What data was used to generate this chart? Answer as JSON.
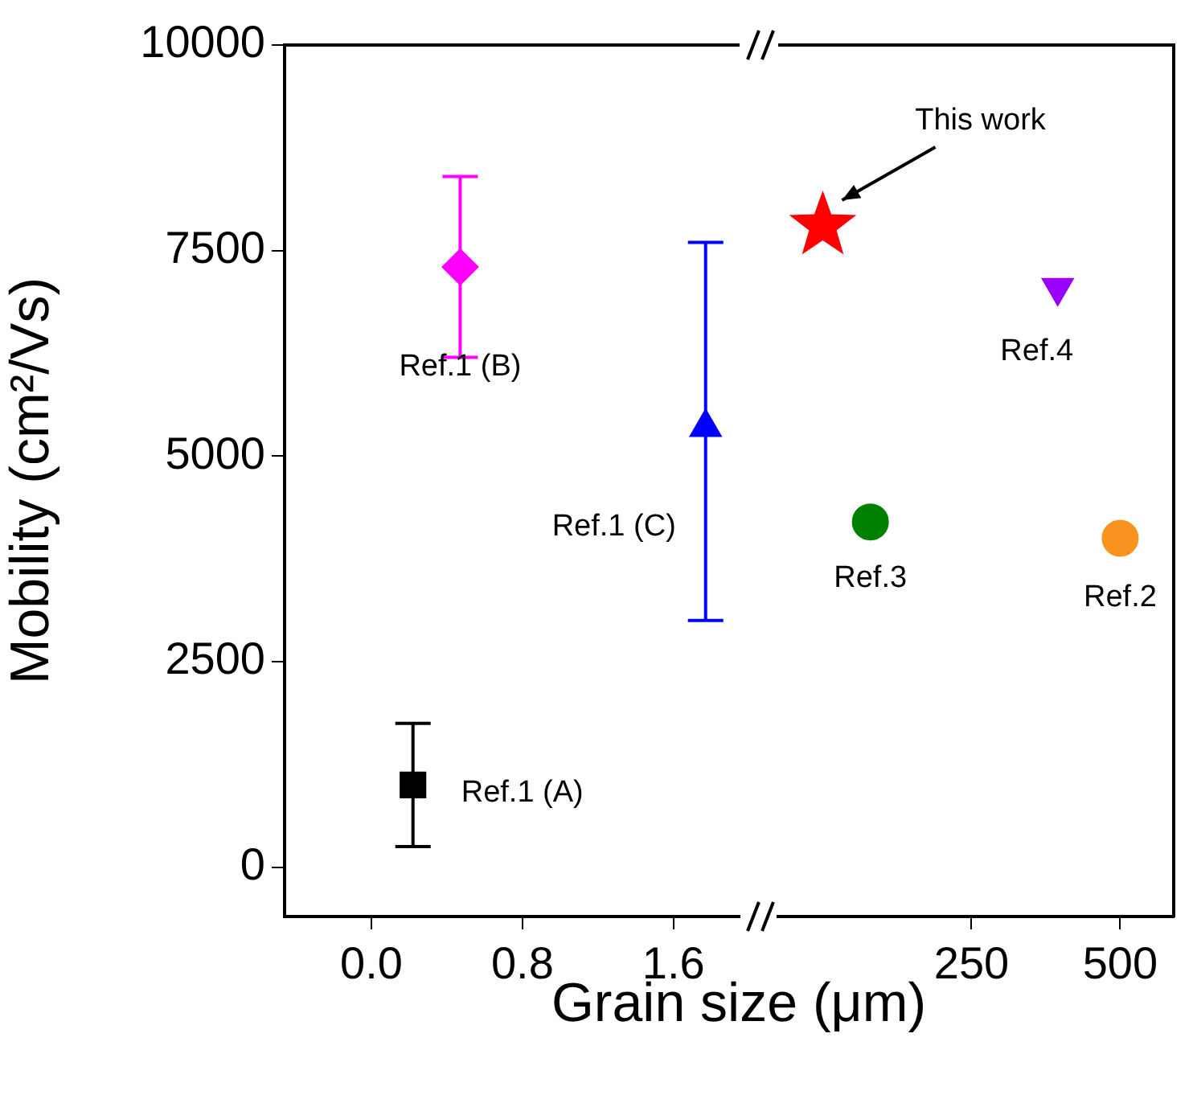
{
  "chart_data": [
    {
      "type": "scatter",
      "ylabel": "Mobility (cm²/Vs)",
      "xlabel": "Grain size (μm)",
      "xlim": [
        -0.46,
        1.95
      ],
      "xticks": [
        {
          "value": 0,
          "label": "0.0"
        },
        {
          "value": 0.8,
          "label": "0.8"
        },
        {
          "value": 1.6,
          "label": "1.6"
        }
      ],
      "ylim": [
        -600,
        10000
      ],
      "yticks": [
        0,
        2500,
        5000,
        7500,
        10000
      ],
      "grid": false,
      "legend": false,
      "series": [
        {
          "name": "Ref.1 (A)",
          "color": "#000000",
          "marker": "square",
          "x": [
            0.22
          ],
          "values": [
            1000
          ],
          "errors": [
            [
              250,
              1750
            ]
          ]
        },
        {
          "name": "Ref.1 (B)",
          "color": "#ff00ff",
          "marker": "diamond",
          "x": [
            0.47
          ],
          "values": [
            7300
          ],
          "errors": [
            [
              6200,
              8400
            ]
          ]
        },
        {
          "name": "Ref.1 (C)",
          "color": "#0000ff",
          "marker": "triangle",
          "x": [
            1.77
          ],
          "values": [
            5350
          ],
          "errors": [
            [
              3000,
              7600
            ]
          ]
        }
      ]
    },
    {
      "type": "scatter",
      "xlim": [
        -75,
        590
      ],
      "xticks": [
        250,
        500
      ],
      "ylim": [
        -600,
        10000
      ],
      "yticks": [
        0,
        2500,
        5000,
        7500,
        10000
      ],
      "grid": false,
      "legend": false,
      "tick_labels": "x",
      "series": [
        {
          "name": "This work",
          "color": "#ff0000",
          "marker": "star",
          "x": [
            0
          ],
          "values": [
            7800
          ]
        },
        {
          "name": "Ref.3",
          "color": "#008000",
          "marker": "circle",
          "x": [
            80
          ],
          "values": [
            4200
          ]
        },
        {
          "name": "Ref.4",
          "color": "#9900ff",
          "marker": "triangle-down",
          "x": [
            395
          ],
          "values": [
            7050
          ]
        },
        {
          "name": "Ref.2",
          "color": "#f7931e",
          "marker": "circle",
          "x": [
            500
          ],
          "values": [
            4000
          ]
        }
      ]
    }
  ]
}
